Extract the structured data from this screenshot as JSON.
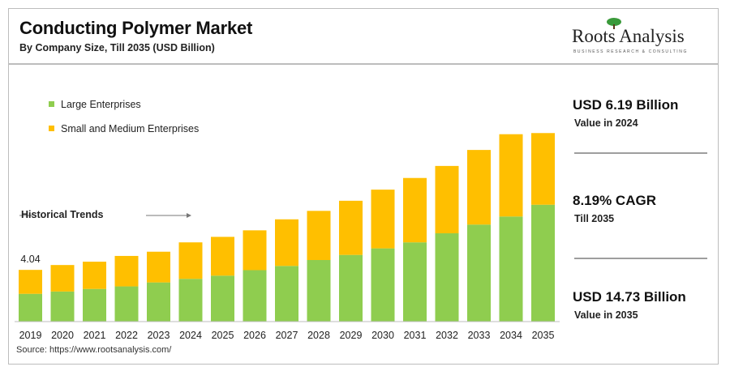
{
  "header": {
    "title": "Conducting Polymer Market",
    "subtitle": "By Company Size, Till 2035 (USD Billion)"
  },
  "logo": {
    "name": "Roots Analysis",
    "tagline": "BUSINESS RESEARCH & CONSULTING"
  },
  "colors": {
    "large": "#8fcd4f",
    "sme": "#ffbf00",
    "frame": "#bdbdbd"
  },
  "kpis": [
    {
      "value": "USD 6.19 Billion",
      "label": "Value in 2024"
    },
    {
      "value": "8.19% CAGR",
      "label": "Till 2035"
    },
    {
      "value": "USD 14.73 Billion",
      "label": "Value in 2035"
    }
  ],
  "annotations": {
    "historical": "Historical Trends",
    "first_value": "4.04"
  },
  "source": "Source: https://www.rootsanalysis.com/",
  "chart_data": {
    "type": "bar",
    "stacked": true,
    "categories": [
      "2019",
      "2020",
      "2021",
      "2022",
      "2023",
      "2024",
      "2025",
      "2026",
      "2027",
      "2028",
      "2029",
      "2030",
      "2031",
      "2032",
      "2033",
      "2034",
      "2035"
    ],
    "series": [
      {
        "name": "Large Enterprises",
        "values": [
          2.17,
          2.35,
          2.55,
          2.75,
          3.06,
          3.34,
          3.59,
          4.02,
          4.35,
          4.81,
          5.21,
          5.72,
          6.19,
          6.9,
          7.58,
          8.21,
          9.13
        ]
      },
      {
        "name": "Small and Medium Enterprises",
        "values": [
          1.87,
          2.07,
          2.13,
          2.38,
          2.4,
          2.85,
          3.03,
          3.11,
          3.64,
          3.84,
          4.23,
          4.59,
          5.03,
          5.26,
          5.83,
          6.43,
          5.6
        ]
      }
    ],
    "ylim": [
      0,
      16
    ],
    "legend": "top-left",
    "grid": false,
    "xlabel": "",
    "ylabel": ""
  }
}
